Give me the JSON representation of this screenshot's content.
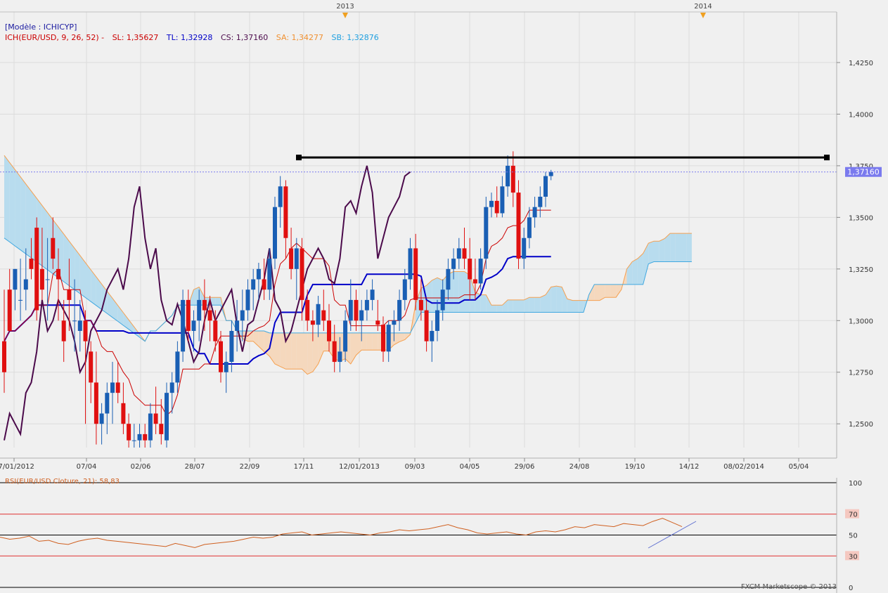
{
  "header": {
    "model": "[Modèle : ICHICYP]",
    "ich_label": "ICH(EUR/USD, 9, 26, 52) -",
    "sl": "SL: 1,35627",
    "tl": "TL: 1,32928",
    "cs": "CS: 1,37160",
    "sa": "SA: 1,34277",
    "sb": "SB: 1,32876"
  },
  "colors": {
    "bull": "#1a5fb4",
    "bear": "#e01010",
    "tenkan": "#cc0000",
    "kijun": "#0000c8",
    "chikou": "#4b0a4b",
    "senkou_a": "#f5a050",
    "senkou_b": "#40a8e0",
    "kumo_bull": "#b8dcee",
    "kumo_bear": "#f5d8bd",
    "rsi": "#d06020",
    "price_badge": "#7a7aee"
  },
  "year_markers": [
    "2013",
    "2014"
  ],
  "price_badge": "1,37160",
  "chart_data": [
    {
      "type": "candlestick",
      "title": "",
      "series_name": "EUR/USD",
      "y_ticks": [
        "1,4250",
        "1,4000",
        "1,3750",
        "1,3500",
        "1,3250",
        "1,3000",
        "1,2750",
        "1,2500"
      ],
      "x_ticks": [
        "07/01/2012",
        "07/04",
        "02/06",
        "28/07",
        "22/09",
        "17/11",
        "12/01/2013",
        "09/03",
        "04/05",
        "29/06",
        "24/08",
        "19/10",
        "14/12",
        "08/02/2014",
        "05/04"
      ],
      "ylim": [
        1.2385,
        1.4495
      ],
      "candles": [
        [
          1.29,
          1.315,
          1.265,
          1.275
        ],
        [
          1.315,
          1.325,
          1.295,
          1.295
        ],
        [
          1.315,
          1.325,
          1.305,
          1.325
        ],
        [
          1.31,
          1.33,
          1.3,
          1.31
        ],
        [
          1.315,
          1.335,
          1.305,
          1.32
        ],
        [
          1.33,
          1.34,
          1.32,
          1.325
        ],
        [
          1.345,
          1.35,
          1.3,
          1.305
        ],
        [
          1.325,
          1.345,
          1.31,
          1.315
        ],
        [
          1.32,
          1.34,
          1.3,
          1.32
        ],
        [
          1.34,
          1.35,
          1.325,
          1.33
        ],
        [
          1.325,
          1.335,
          1.3,
          1.32
        ],
        [
          1.3,
          1.31,
          1.28,
          1.29
        ],
        [
          1.315,
          1.33,
          1.295,
          1.31
        ],
        [
          1.3,
          1.32,
          1.285,
          1.3
        ],
        [
          1.295,
          1.31,
          1.285,
          1.3
        ],
        [
          1.3,
          1.305,
          1.25,
          1.29
        ],
        [
          1.285,
          1.29,
          1.26,
          1.27
        ],
        [
          1.27,
          1.285,
          1.24,
          1.25
        ],
        [
          1.25,
          1.26,
          1.24,
          1.255
        ],
        [
          1.255,
          1.27,
          1.245,
          1.265
        ],
        [
          1.265,
          1.28,
          1.25,
          1.27
        ],
        [
          1.27,
          1.28,
          1.26,
          1.265
        ],
        [
          1.26,
          1.27,
          1.245,
          1.25
        ],
        [
          1.25,
          1.255,
          1.238,
          1.242
        ],
        [
          1.242,
          1.25,
          1.238,
          1.242
        ],
        [
          1.242,
          1.25,
          1.238,
          1.245
        ],
        [
          1.245,
          1.25,
          1.238,
          1.242
        ],
        [
          1.242,
          1.26,
          1.238,
          1.255
        ],
        [
          1.255,
          1.268,
          1.245,
          1.25
        ],
        [
          1.25,
          1.262,
          1.24,
          1.245
        ],
        [
          1.242,
          1.27,
          1.238,
          1.265
        ],
        [
          1.265,
          1.275,
          1.255,
          1.27
        ],
        [
          1.27,
          1.29,
          1.265,
          1.285
        ],
        [
          1.285,
          1.315,
          1.28,
          1.31
        ],
        [
          1.31,
          1.315,
          1.29,
          1.295
        ],
        [
          1.295,
          1.305,
          1.285,
          1.3
        ],
        [
          1.3,
          1.315,
          1.29,
          1.31
        ],
        [
          1.31,
          1.32,
          1.295,
          1.305
        ],
        [
          1.305,
          1.312,
          1.29,
          1.3
        ],
        [
          1.3,
          1.305,
          1.285,
          1.29
        ],
        [
          1.29,
          1.295,
          1.27,
          1.275
        ],
        [
          1.275,
          1.285,
          1.265,
          1.28
        ],
        [
          1.28,
          1.3,
          1.275,
          1.295
        ],
        [
          1.295,
          1.31,
          1.285,
          1.3
        ],
        [
          1.3,
          1.315,
          1.29,
          1.305
        ],
        [
          1.305,
          1.32,
          1.3,
          1.315
        ],
        [
          1.315,
          1.325,
          1.305,
          1.32
        ],
        [
          1.32,
          1.328,
          1.31,
          1.325
        ],
        [
          1.32,
          1.33,
          1.31,
          1.315
        ],
        [
          1.315,
          1.335,
          1.31,
          1.33
        ],
        [
          1.33,
          1.36,
          1.325,
          1.355
        ],
        [
          1.355,
          1.37,
          1.345,
          1.365
        ],
        [
          1.365,
          1.368,
          1.33,
          1.34
        ],
        [
          1.335,
          1.345,
          1.32,
          1.325
        ],
        [
          1.325,
          1.34,
          1.31,
          1.335
        ],
        [
          1.335,
          1.34,
          1.3,
          1.31
        ],
        [
          1.31,
          1.315,
          1.295,
          1.3
        ],
        [
          1.3,
          1.305,
          1.29,
          1.298
        ],
        [
          1.298,
          1.312,
          1.292,
          1.308
        ],
        [
          1.305,
          1.315,
          1.295,
          1.3
        ],
        [
          1.3,
          1.308,
          1.285,
          1.29
        ],
        [
          1.29,
          1.298,
          1.275,
          1.28
        ],
        [
          1.28,
          1.292,
          1.275,
          1.285
        ],
        [
          1.285,
          1.305,
          1.28,
          1.3
        ],
        [
          1.3,
          1.32,
          1.295,
          1.31
        ],
        [
          1.31,
          1.315,
          1.295,
          1.3
        ],
        [
          1.3,
          1.31,
          1.29,
          1.305
        ],
        [
          1.305,
          1.315,
          1.3,
          1.31
        ],
        [
          1.31,
          1.32,
          1.305,
          1.315
        ],
        [
          1.3,
          1.31,
          1.295,
          1.298
        ],
        [
          1.298,
          1.302,
          1.28,
          1.285
        ],
        [
          1.285,
          1.3,
          1.28,
          1.298
        ],
        [
          1.298,
          1.305,
          1.29,
          1.3
        ],
        [
          1.3,
          1.315,
          1.295,
          1.31
        ],
        [
          1.31,
          1.325,
          1.305,
          1.32
        ],
        [
          1.32,
          1.34,
          1.315,
          1.335
        ],
        [
          1.335,
          1.342,
          1.305,
          1.31
        ],
        [
          1.31,
          1.32,
          1.3,
          1.305
        ],
        [
          1.305,
          1.31,
          1.285,
          1.29
        ],
        [
          1.29,
          1.3,
          1.28,
          1.295
        ],
        [
          1.295,
          1.31,
          1.29,
          1.305
        ],
        [
          1.305,
          1.32,
          1.3,
          1.315
        ],
        [
          1.315,
          1.33,
          1.31,
          1.325
        ],
        [
          1.325,
          1.335,
          1.32,
          1.33
        ],
        [
          1.33,
          1.34,
          1.325,
          1.335
        ],
        [
          1.335,
          1.345,
          1.325,
          1.33
        ],
        [
          1.33,
          1.34,
          1.31,
          1.32
        ],
        [
          1.32,
          1.33,
          1.31,
          1.318
        ],
        [
          1.318,
          1.335,
          1.315,
          1.33
        ],
        [
          1.33,
          1.36,
          1.325,
          1.355
        ],
        [
          1.355,
          1.362,
          1.35,
          1.358
        ],
        [
          1.358,
          1.365,
          1.35,
          1.352
        ],
        [
          1.352,
          1.37,
          1.35,
          1.365
        ],
        [
          1.365,
          1.38,
          1.36,
          1.375
        ],
        [
          1.375,
          1.382,
          1.355,
          1.362
        ],
        [
          1.362,
          1.368,
          1.325,
          1.33
        ],
        [
          1.33,
          1.345,
          1.325,
          1.34
        ],
        [
          1.34,
          1.355,
          1.335,
          1.35
        ],
        [
          1.35,
          1.36,
          1.345,
          1.355
        ],
        [
          1.355,
          1.365,
          1.35,
          1.36
        ],
        [
          1.36,
          1.372,
          1.355,
          1.37
        ],
        [
          1.37,
          1.373,
          1.368,
          1.372
        ]
      ]
    },
    {
      "type": "line",
      "title": "RSI(EUR/USD.Cloture, 21): 58,83",
      "y_ticks": [
        "100",
        "70",
        "50",
        "30",
        "0"
      ],
      "levels": [
        100,
        70,
        50,
        30,
        0
      ],
      "ylim": [
        0,
        100
      ],
      "values": [
        48,
        46,
        47,
        49,
        44,
        45,
        42,
        41,
        44,
        46,
        47,
        45,
        44,
        43,
        42,
        41,
        40,
        39,
        42,
        40,
        38,
        41,
        42,
        43,
        44,
        46,
        48,
        47,
        48,
        51,
        52,
        53,
        50,
        51,
        52,
        53,
        52,
        51,
        50,
        52,
        53,
        55,
        54,
        55,
        56,
        58,
        60,
        57,
        55,
        52,
        51,
        52,
        53,
        51,
        50,
        53,
        54,
        53,
        55,
        58,
        57,
        60,
        59,
        58,
        61,
        60,
        59,
        63,
        66,
        62,
        58
      ]
    }
  ],
  "footer": "FXCM Marketscope © 2013"
}
